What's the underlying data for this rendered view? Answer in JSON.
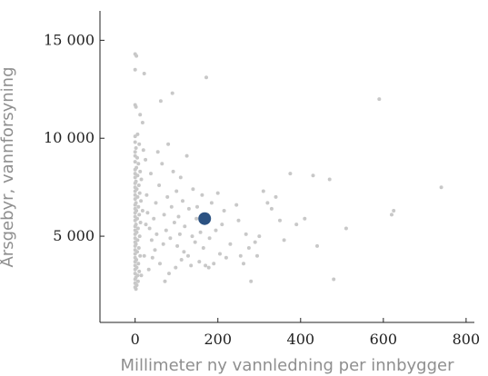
{
  "chart_data": {
    "type": "scatter",
    "title": "",
    "xlabel": "Millimeter ny vannledning per innbygger",
    "ylabel": "Årsgebyr, vannforsyning",
    "xlim": [
      -85,
      820
    ],
    "ylim": [
      600,
      16500
    ],
    "x_ticks": [
      0,
      200,
      400,
      600,
      800
    ],
    "x_tick_labels": [
      "0",
      "200",
      "400",
      "600",
      "800"
    ],
    "y_ticks": [
      5000,
      10000,
      15000
    ],
    "y_tick_labels": [
      "5 000",
      "10 000",
      "15 000"
    ],
    "grid": false,
    "legend": "none",
    "point_color": "#c8c8c8",
    "highlight_color": "#2c5282",
    "highlight": {
      "x": 168,
      "y": 5900
    },
    "series": [
      {
        "points": [
          [
            0,
            14300
          ],
          [
            3,
            14200
          ],
          [
            0,
            13500
          ],
          [
            22,
            13300
          ],
          [
            0,
            11700
          ],
          [
            2,
            11600
          ],
          [
            12,
            11200
          ],
          [
            18,
            10800
          ],
          [
            6,
            10200
          ],
          [
            0,
            10100
          ],
          [
            0,
            9800
          ],
          [
            10,
            9700
          ],
          [
            2,
            9500
          ],
          [
            0,
            9300
          ],
          [
            0,
            9100
          ],
          [
            5,
            9000
          ],
          [
            0,
            8800
          ],
          [
            8,
            8700
          ],
          [
            3,
            8500
          ],
          [
            0,
            8400
          ],
          [
            12,
            8300
          ],
          [
            0,
            8200
          ],
          [
            6,
            8100
          ],
          [
            0,
            8000
          ],
          [
            15,
            7900
          ],
          [
            2,
            7800
          ],
          [
            0,
            7700
          ],
          [
            9,
            7600
          ],
          [
            0,
            7500
          ],
          [
            4,
            7400
          ],
          [
            0,
            7300
          ],
          [
            11,
            7200
          ],
          [
            0,
            7100
          ],
          [
            6,
            7000
          ],
          [
            0,
            6900
          ],
          [
            14,
            6800
          ],
          [
            2,
            6700
          ],
          [
            0,
            6600
          ],
          [
            8,
            6500
          ],
          [
            0,
            6400
          ],
          [
            3,
            6300
          ],
          [
            0,
            6200
          ],
          [
            10,
            6100
          ],
          [
            0,
            6000
          ],
          [
            5,
            5900
          ],
          [
            0,
            5800
          ],
          [
            13,
            5700
          ],
          [
            2,
            5600
          ],
          [
            0,
            5500
          ],
          [
            7,
            5400
          ],
          [
            0,
            5300
          ],
          [
            4,
            5200
          ],
          [
            0,
            5100
          ],
          [
            11,
            5000
          ],
          [
            0,
            4900
          ],
          [
            6,
            4800
          ],
          [
            0,
            4700
          ],
          [
            2,
            4600
          ],
          [
            0,
            4500
          ],
          [
            9,
            4400
          ],
          [
            0,
            4300
          ],
          [
            5,
            4200
          ],
          [
            0,
            4100
          ],
          [
            12,
            4000
          ],
          [
            0,
            3900
          ],
          [
            3,
            3800
          ],
          [
            0,
            3700
          ],
          [
            8,
            3600
          ],
          [
            0,
            3500
          ],
          [
            4,
            3400
          ],
          [
            0,
            3300
          ],
          [
            10,
            3200
          ],
          [
            0,
            3100
          ],
          [
            6,
            3000
          ],
          [
            2,
            2900
          ],
          [
            0,
            2800
          ],
          [
            7,
            2700
          ],
          [
            0,
            2600
          ],
          [
            4,
            2500
          ],
          [
            0,
            2400
          ],
          [
            2,
            2300
          ],
          [
            30,
            6200
          ],
          [
            35,
            5400
          ],
          [
            40,
            4800
          ],
          [
            28,
            7100
          ],
          [
            42,
            3900
          ],
          [
            38,
            8200
          ],
          [
            33,
            3300
          ],
          [
            45,
            5900
          ],
          [
            50,
            6700
          ],
          [
            48,
            4300
          ],
          [
            55,
            9300
          ],
          [
            52,
            5100
          ],
          [
            58,
            7600
          ],
          [
            60,
            3600
          ],
          [
            62,
            11900
          ],
          [
            65,
            8700
          ],
          [
            68,
            4600
          ],
          [
            70,
            6100
          ],
          [
            72,
            2700
          ],
          [
            75,
            5300
          ],
          [
            78,
            7000
          ],
          [
            80,
            9700
          ],
          [
            82,
            3100
          ],
          [
            85,
            4900
          ],
          [
            88,
            6500
          ],
          [
            90,
            12300
          ],
          [
            92,
            8300
          ],
          [
            95,
            5700
          ],
          [
            98,
            3400
          ],
          [
            100,
            7300
          ],
          [
            102,
            4500
          ],
          [
            105,
            6000
          ],
          [
            108,
            5100
          ],
          [
            110,
            8000
          ],
          [
            112,
            3800
          ],
          [
            115,
            6800
          ],
          [
            118,
            4200
          ],
          [
            120,
            5500
          ],
          [
            125,
            9100
          ],
          [
            128,
            4000
          ],
          [
            130,
            6400
          ],
          [
            135,
            3500
          ],
          [
            138,
            5000
          ],
          [
            140,
            7400
          ],
          [
            145,
            4700
          ],
          [
            148,
            5900
          ],
          [
            150,
            6500
          ],
          [
            155,
            3700
          ],
          [
            158,
            5200
          ],
          [
            162,
            7100
          ],
          [
            165,
            4400
          ],
          [
            170,
            3500
          ],
          [
            172,
            13100
          ],
          [
            175,
            6100
          ],
          [
            178,
            3400
          ],
          [
            180,
            4900
          ],
          [
            185,
            6700
          ],
          [
            190,
            3600
          ],
          [
            195,
            5300
          ],
          [
            200,
            7200
          ],
          [
            205,
            4100
          ],
          [
            210,
            5600
          ],
          [
            215,
            6300
          ],
          [
            220,
            3900
          ],
          [
            230,
            4600
          ],
          [
            245,
            6600
          ],
          [
            250,
            5800
          ],
          [
            255,
            4000
          ],
          [
            262,
            3600
          ],
          [
            268,
            5100
          ],
          [
            275,
            4400
          ],
          [
            280,
            2700
          ],
          [
            290,
            4700
          ],
          [
            295,
            4000
          ],
          [
            300,
            5000
          ],
          [
            310,
            7300
          ],
          [
            320,
            6700
          ],
          [
            330,
            6400
          ],
          [
            340,
            7000
          ],
          [
            350,
            5800
          ],
          [
            360,
            4800
          ],
          [
            375,
            8200
          ],
          [
            390,
            5600
          ],
          [
            410,
            5900
          ],
          [
            430,
            8100
          ],
          [
            440,
            4500
          ],
          [
            470,
            7900
          ],
          [
            480,
            2800
          ],
          [
            510,
            5400
          ],
          [
            590,
            12000
          ],
          [
            620,
            6100
          ],
          [
            625,
            6300
          ],
          [
            740,
            7500
          ],
          [
            20,
            9400
          ],
          [
            25,
            8900
          ],
          [
            18,
            6300
          ],
          [
            22,
            4000
          ],
          [
            15,
            3000
          ],
          [
            26,
            5600
          ]
        ]
      }
    ]
  }
}
